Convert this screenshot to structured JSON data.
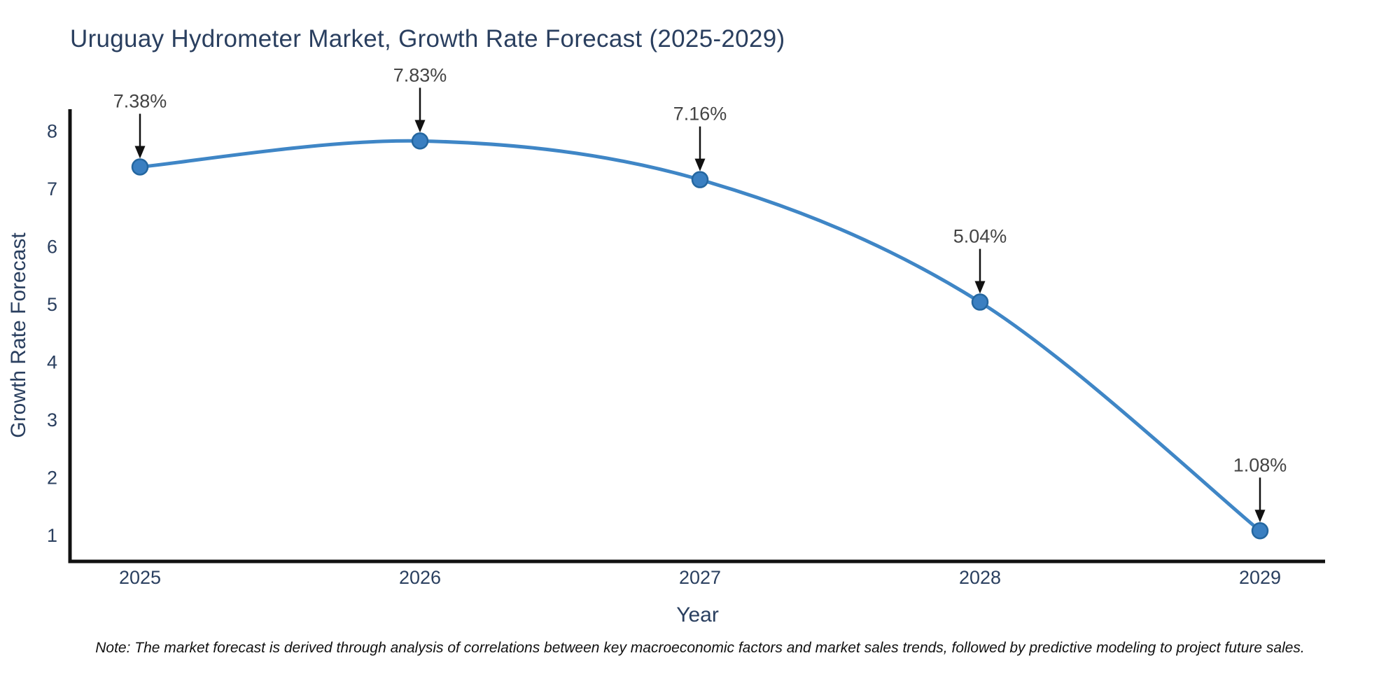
{
  "title": "Uruguay Hydrometer Market, Growth Rate Forecast (2025-2029)",
  "note": "Note: The market forecast is derived through analysis of correlations between key macroeconomic factors and market sales trends, followed by predictive modeling to project future sales.",
  "chart_data": {
    "type": "line",
    "title": "Uruguay Hydrometer Market, Growth Rate Forecast (2025-2029)",
    "x": [
      2025,
      2026,
      2027,
      2028,
      2029
    ],
    "values": [
      7.38,
      7.83,
      7.16,
      5.04,
      1.08
    ],
    "point_labels": [
      "7.38%",
      "7.83%",
      "7.16%",
      "5.04%",
      "1.08%"
    ],
    "xticks": [
      "2025",
      "2026",
      "2027",
      "2028",
      "2029"
    ],
    "yticks": [
      1,
      2,
      3,
      4,
      5,
      6,
      7,
      8
    ],
    "xlabel": "Year",
    "ylabel": "Growth Rate Forecast",
    "ylim": [
      0.55,
      8.38
    ],
    "line_shape": "spline",
    "grid": false,
    "legend": "none",
    "colors": {
      "line": "#3f86c6",
      "marker": "#3a7fc1",
      "marker_edge": "#24669f",
      "axis": "#111111",
      "tick_text": "#2a3f5f",
      "annotation_text": "#444444",
      "annotation_arrow": "#111111",
      "background": "#ffffff"
    }
  }
}
